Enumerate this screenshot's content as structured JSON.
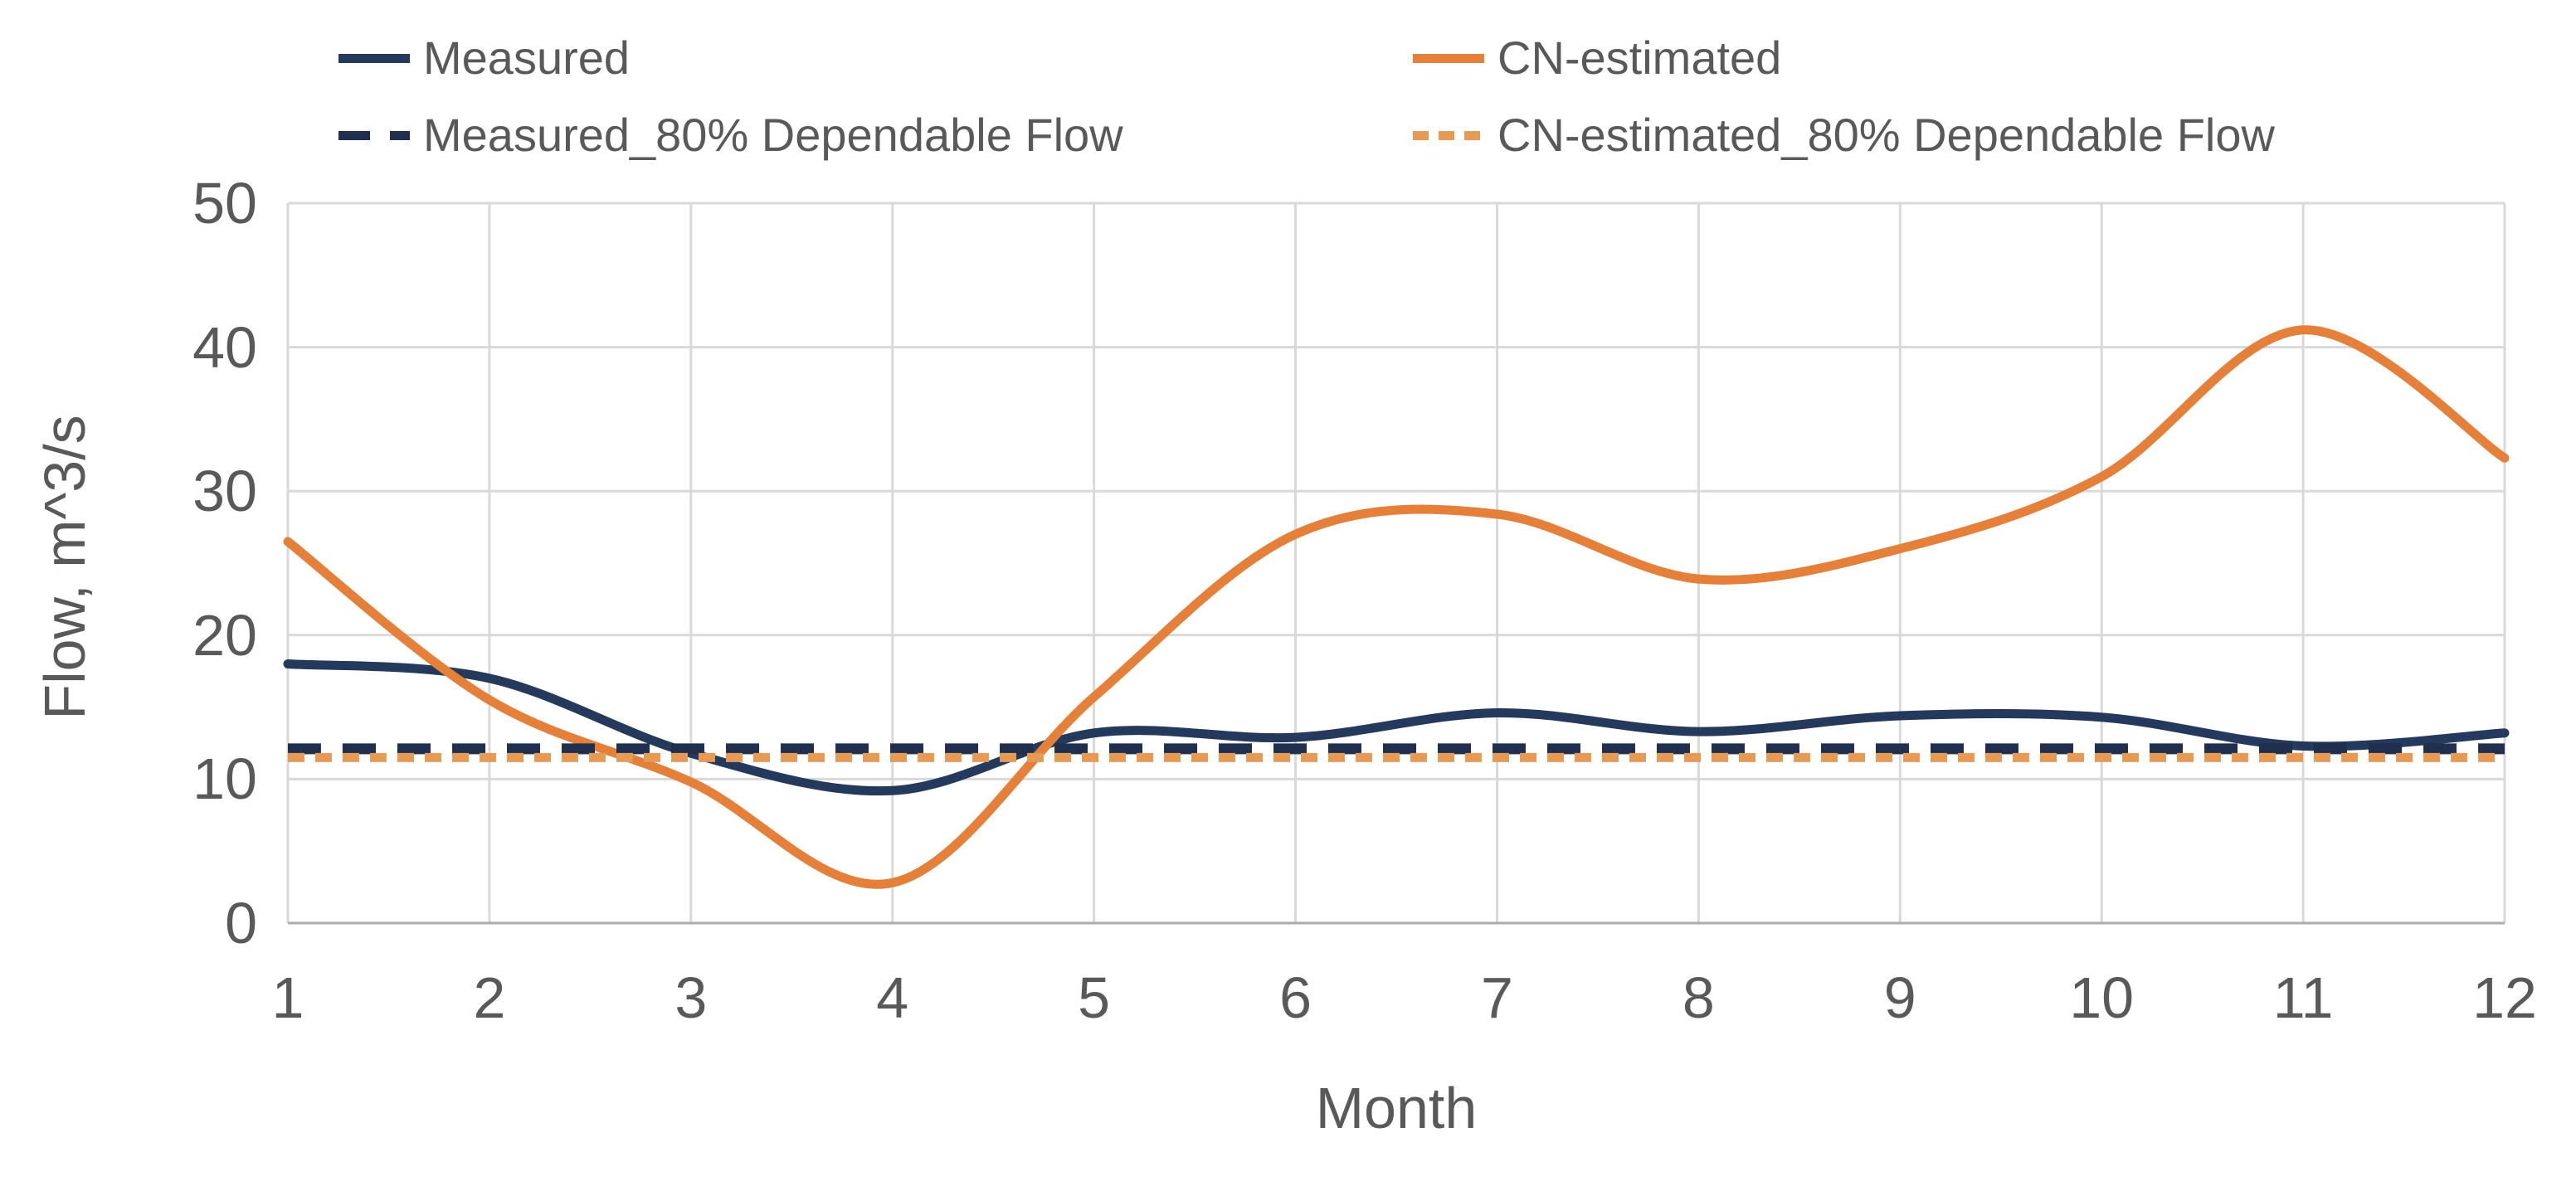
{
  "chart_data": {
    "type": "line",
    "title": "",
    "xlabel": "Month",
    "ylabel": "Flow, m^3/s",
    "x": [
      1,
      2,
      3,
      4,
      5,
      6,
      7,
      8,
      9,
      10,
      11,
      12
    ],
    "xlim": [
      1,
      12
    ],
    "ylim": [
      0,
      50
    ],
    "yticks": [
      0,
      10,
      20,
      30,
      40,
      50
    ],
    "grid": true,
    "legend_position": "top",
    "smoothed_lines": true,
    "series": [
      {
        "name": "Measured",
        "style": "solid",
        "color": "#24395B",
        "values": [
          18.0,
          17.0,
          11.8,
          9.2,
          13.2,
          12.9,
          14.6,
          13.3,
          14.4,
          14.3,
          12.3,
          13.2
        ]
      },
      {
        "name": "CN-estimated",
        "style": "solid",
        "color": "#E5803A",
        "values": [
          26.5,
          15.5,
          9.8,
          2.8,
          15.7,
          27.0,
          28.4,
          23.9,
          26.0,
          31.0,
          41.2,
          32.3
        ]
      },
      {
        "name": "Measured_80% Dependable Flow",
        "style": "long-dash",
        "color": "#1F2F4D",
        "values": [
          12.1,
          12.1,
          12.1,
          12.1,
          12.1,
          12.1,
          12.1,
          12.1,
          12.1,
          12.1,
          12.1,
          12.1
        ]
      },
      {
        "name": "CN-estimated_80% Dependable Flow",
        "style": "short-dash",
        "color": "#E59A55",
        "values": [
          11.5,
          11.5,
          11.5,
          11.5,
          11.5,
          11.5,
          11.5,
          11.5,
          11.5,
          11.5,
          11.5,
          11.5
        ]
      }
    ],
    "colors": {
      "gridline": "#D9D9D9",
      "axis_line": "#ABABAB",
      "text": "#595959",
      "background": "#FFFFFF"
    }
  }
}
